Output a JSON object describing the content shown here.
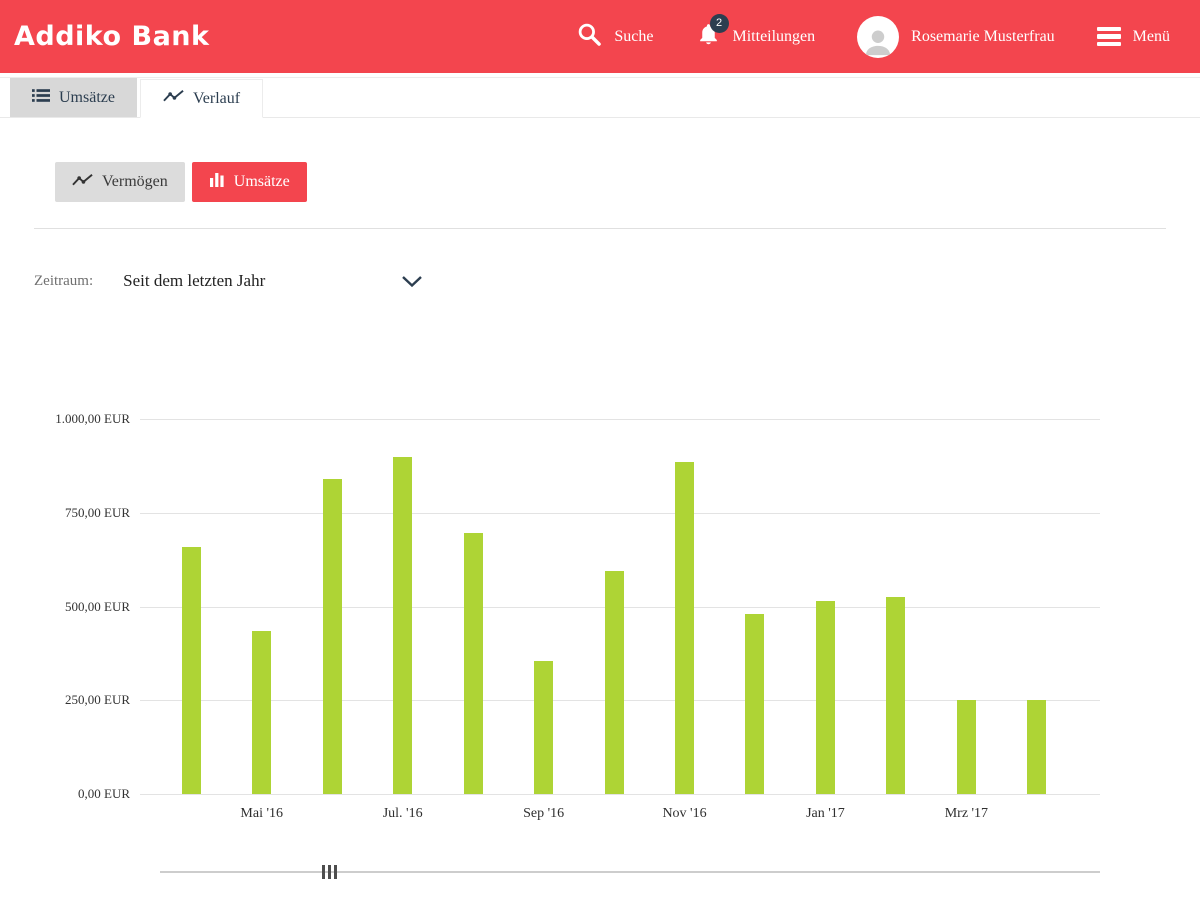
{
  "colors": {
    "brand": "#f3454e",
    "bar": "#aed435",
    "navy": "#2c3e50"
  },
  "brand": {
    "logo": "Addiko Bank"
  },
  "header": {
    "search_label": "Suche",
    "notifications_label": "Mitteilungen",
    "notifications_count": "2",
    "user_name": "Rosemarie Musterfrau",
    "menu_label": "Menü"
  },
  "tabs": [
    {
      "label": "Umsätze",
      "icon": "list-icon",
      "active": false
    },
    {
      "label": "Verlauf",
      "icon": "trend-icon",
      "active": true
    }
  ],
  "view_toggle": [
    {
      "label": "Vermögen",
      "icon": "trend-icon",
      "active": false
    },
    {
      "label": "Umsätze",
      "icon": "bar-chart-icon",
      "active": true
    }
  ],
  "filter": {
    "label": "Zeitraum:",
    "value": "Seit dem letzten Jahr"
  },
  "chart_data": {
    "type": "bar",
    "title": "",
    "xlabel": "",
    "ylabel": "",
    "ylim": [
      0,
      1000
    ],
    "grid": true,
    "legend": false,
    "y_ticks": [
      "1.000,00 EUR",
      "750,00 EUR",
      "500,00 EUR",
      "250,00 EUR",
      "0,00 EUR"
    ],
    "categories": [
      "",
      "Mai '16",
      "",
      "Jul. '16",
      "",
      "Sep '16",
      "",
      "Nov '16",
      "",
      "Jan '17",
      "",
      "Mrz '17",
      ""
    ],
    "values": [
      660,
      435,
      840,
      900,
      695,
      355,
      595,
      885,
      480,
      515,
      525,
      250,
      250
    ],
    "bar_color": "#aed435"
  }
}
